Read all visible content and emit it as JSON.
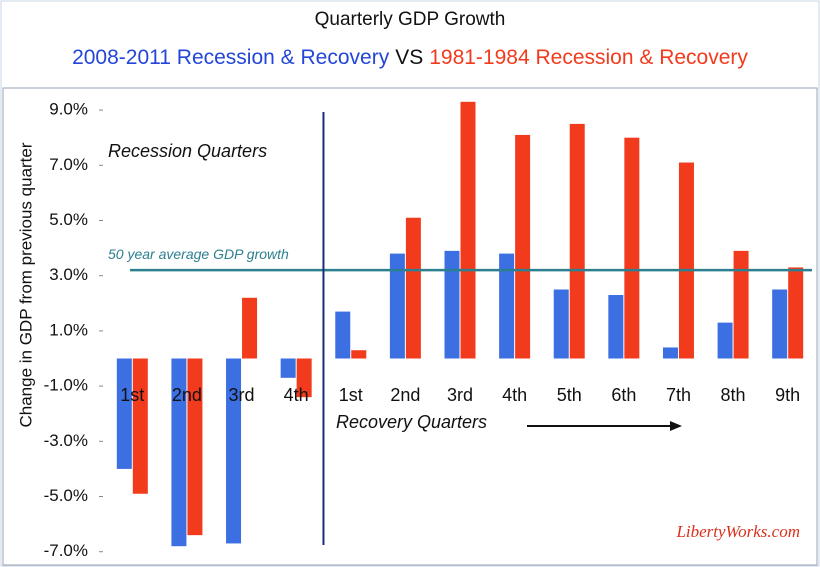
{
  "chart_data": {
    "type": "bar",
    "title": "Quarterly GDP Growth",
    "subtitle_joiner": "VS",
    "y_axis_label": "Change in GDP from previous quarter",
    "categories": [
      "1st",
      "2nd",
      "3rd",
      "4th",
      "1st",
      "2nd",
      "3rd",
      "4th",
      "5th",
      "6th",
      "7th",
      "8th",
      "9th"
    ],
    "series": [
      {
        "name": "2008-2011 Recession & Recovery",
        "color": "#3b6fe2",
        "values": [
          -4.0,
          -6.8,
          -6.7,
          -0.7,
          1.7,
          3.8,
          3.9,
          3.8,
          2.5,
          2.3,
          0.4,
          1.3,
          2.5
        ]
      },
      {
        "name": "1981-1984 Recession & Recovery",
        "color": "#f23b1d",
        "values": [
          -4.9,
          -6.4,
          2.2,
          -1.4,
          0.3,
          5.1,
          9.3,
          8.1,
          8.5,
          8.0,
          7.1,
          3.9,
          3.3
        ]
      }
    ],
    "average": 3.2,
    "average_label": "50 year average GDP growth",
    "average_color": "#2b7f8e",
    "annotations": {
      "recession": "Recession Quarters",
      "recovery": "Recovery Quarters",
      "source": "LibertyWorks.com"
    },
    "ylim": [
      -7.3,
      9.8
    ],
    "yticks": [
      {
        "value": -7,
        "label": "-7.0%"
      },
      {
        "value": -5,
        "label": "-5.0%"
      },
      {
        "value": -3,
        "label": "-3.0%"
      },
      {
        "value": -1,
        "label": "-1.0%"
      },
      {
        "value": 1,
        "label": "1.0%"
      },
      {
        "value": 3,
        "label": "3.0%"
      },
      {
        "value": 5,
        "label": "5.0%"
      },
      {
        "value": 7,
        "label": "7.0%"
      },
      {
        "value": 9,
        "label": "9.0%"
      }
    ]
  }
}
